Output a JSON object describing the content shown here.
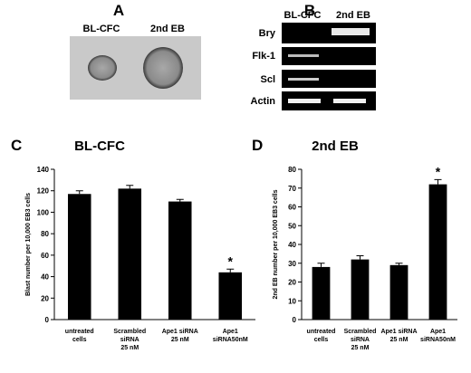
{
  "panels": {
    "a": "A",
    "b": "B",
    "c": "C",
    "d": "D"
  },
  "micrograph": {
    "labels": [
      "BL-CFC",
      "2nd EB"
    ]
  },
  "gel": {
    "columns": [
      "BL-CFC",
      "2nd EB"
    ],
    "rows": [
      "Bry",
      "Flk-1",
      "Scl",
      "Actin"
    ]
  },
  "chart_data": [
    {
      "type": "bar",
      "title": "BL-CFC",
      "y_label": "Blast number per 10,000 EB3 cells",
      "categories": [
        "untreated\ncells",
        "Scrambled\nsiRNA\n25 nM",
        "Ape1 siRNA\n25 nM",
        "Ape1\nsiRNA50nM"
      ],
      "values": [
        117,
        122,
        110,
        44
      ],
      "errors": [
        3,
        3,
        2,
        3
      ],
      "color": "#000000",
      "ylim": [
        0,
        140
      ],
      "yticks": [
        0,
        20,
        40,
        60,
        80,
        100,
        120,
        140
      ],
      "annotations": [
        {
          "text": "*",
          "category": 3
        }
      ]
    },
    {
      "type": "bar",
      "title": "2nd EB",
      "y_label": "2nd EB number per 10,000 EB3 cells",
      "categories": [
        "untreated\ncells",
        "Scrambled\nsiRNA\n25 nM",
        "Ape1 siRNA\n25 nM",
        "Ape1\nsiRNA50nM"
      ],
      "values": [
        28,
        32,
        29,
        72
      ],
      "errors": [
        2,
        2,
        1,
        2.5
      ],
      "color": "#000000",
      "ylim": [
        0,
        80
      ],
      "yticks": [
        0,
        10,
        20,
        30,
        40,
        50,
        60,
        70,
        80
      ],
      "annotations": [
        {
          "text": "*",
          "category": 3
        }
      ]
    }
  ]
}
